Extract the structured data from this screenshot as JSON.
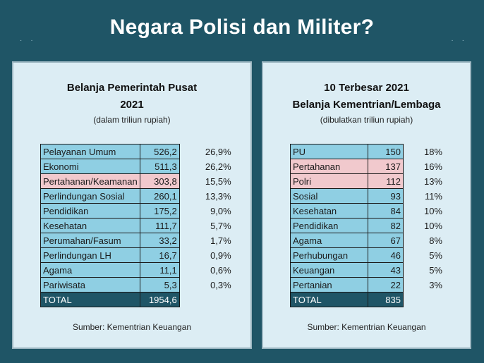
{
  "header": {
    "title": "Negara Polisi dan Militer?"
  },
  "left_panel": {
    "title_line1": "Belanja Pemerintah Pusat",
    "title_line2": "2021",
    "subtitle": "(dalam triliun rupiah)",
    "rows": [
      {
        "label": "Pelayanan Umum",
        "value": "526,2",
        "pct": "26,9%",
        "style": "blue"
      },
      {
        "label": "Ekonomi",
        "value": "511,3",
        "pct": "26,2%",
        "style": "blue"
      },
      {
        "label": "Pertahanan/Keamanan",
        "value": "303,8",
        "pct": "15,5%",
        "style": "pink"
      },
      {
        "label": "Perlindungan Sosial",
        "value": "260,1",
        "pct": "13,3%",
        "style": "blue"
      },
      {
        "label": "Pendidikan",
        "value": "175,2",
        "pct": "9,0%",
        "style": "blue"
      },
      {
        "label": "Kesehatan",
        "value": "111,7",
        "pct": "5,7%",
        "style": "blue"
      },
      {
        "label": "Perumahan/Fasum",
        "value": "33,2",
        "pct": "1,7%",
        "style": "blue"
      },
      {
        "label": "Perlindungan LH",
        "value": "16,7",
        "pct": "0,9%",
        "style": "blue"
      },
      {
        "label": "Agama",
        "value": "11,1",
        "pct": "0,6%",
        "style": "blue"
      },
      {
        "label": "Pariwisata",
        "value": "5,3",
        "pct": "0,3%",
        "style": "blue"
      },
      {
        "label": "TOTAL",
        "value": "1954,6",
        "pct": "",
        "style": "total"
      }
    ],
    "source": "Sumber: Kementrian Keuangan"
  },
  "right_panel": {
    "title_line1": "10 Terbesar 2021",
    "title_line2": "Belanja Kementrian/Lembaga",
    "subtitle": "(dibulatkan triliun rupiah)",
    "rows": [
      {
        "label": "PU",
        "value": "150",
        "pct": "18%",
        "style": "blue"
      },
      {
        "label": "Pertahanan",
        "value": "137",
        "pct": "16%",
        "style": "pink"
      },
      {
        "label": "Polri",
        "value": "112",
        "pct": "13%",
        "style": "pink"
      },
      {
        "label": "Sosial",
        "value": "93",
        "pct": "11%",
        "style": "blue"
      },
      {
        "label": "Kesehatan",
        "value": "84",
        "pct": "10%",
        "style": "blue"
      },
      {
        "label": "Pendidikan",
        "value": "82",
        "pct": "10%",
        "style": "blue"
      },
      {
        "label": "Agama",
        "value": "67",
        "pct": "8%",
        "style": "blue"
      },
      {
        "label": "Perhubungan",
        "value": "46",
        "pct": "5%",
        "style": "blue"
      },
      {
        "label": "Keuangan",
        "value": "43",
        "pct": "5%",
        "style": "blue"
      },
      {
        "label": "Pertanian",
        "value": "22",
        "pct": "3%",
        "style": "blue"
      },
      {
        "label": "TOTAL",
        "value": "835",
        "pct": "",
        "style": "total"
      }
    ],
    "source": "Sumber: Kementrian Keuangan"
  }
}
